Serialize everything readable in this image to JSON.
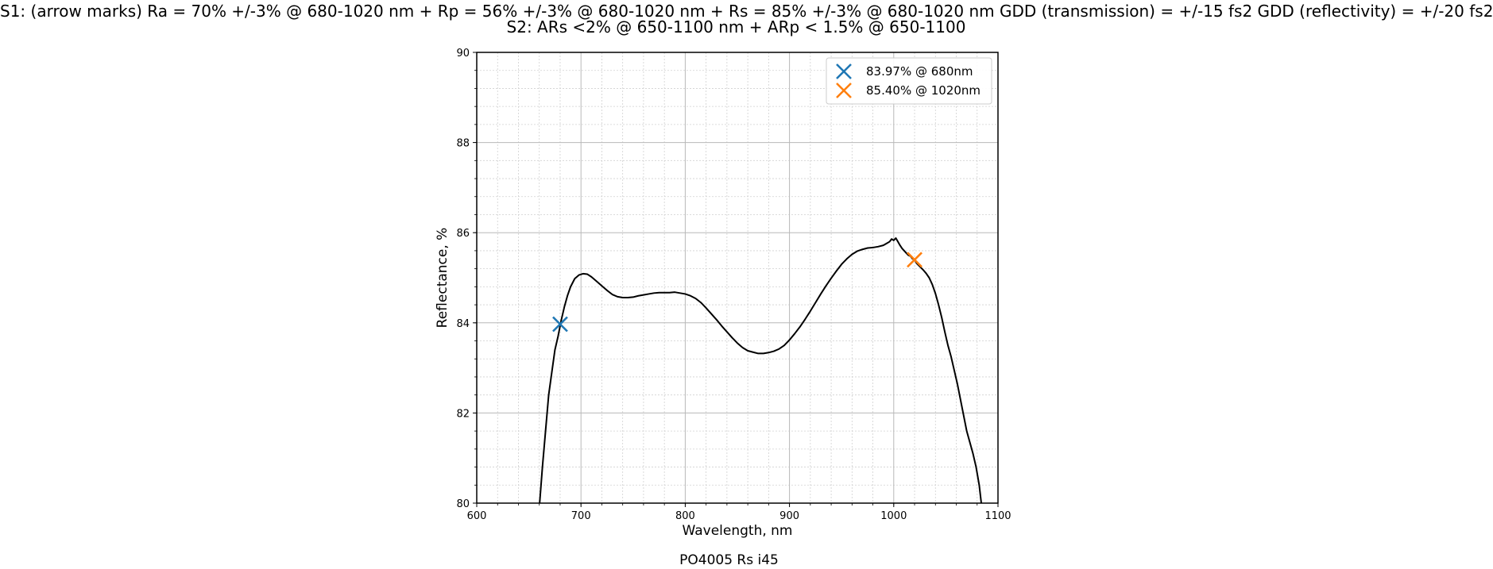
{
  "figure": {
    "title_line1": "S1: (arrow marks)  Ra = 70% +/-3% @ 680-1020 nm + Rp = 56% +/-3% @ 680-1020 nm + Rs = 85% +/-3% @ 680-1020 nm GDD (transmission) = +/-15 fs2 GDD (reflectivity) = +/-20 fs2",
    "title_line2": "S2: ARs <2% @ 650-1100 nm + ARp < 1.5% @ 650-1100",
    "caption": "PO4005 Rs i45"
  },
  "chart_data": {
    "type": "line",
    "xlabel": "Wavelength, nm",
    "ylabel": "Reflectance, %",
    "xlim": [
      600,
      1100
    ],
    "ylim": [
      80,
      90
    ],
    "x_ticks": [
      600,
      700,
      800,
      900,
      1000,
      1100
    ],
    "y_ticks": [
      80,
      82,
      84,
      86,
      88,
      90
    ],
    "x_tick_labels": [
      "600",
      "700",
      "800",
      "900",
      "1000",
      "1100"
    ],
    "y_tick_labels": [
      "80",
      "82",
      "84",
      "86",
      "88",
      "90"
    ],
    "grid": {
      "major": true,
      "minor": true,
      "minor_style": "dotted"
    },
    "legend_position": "top-right",
    "series": [
      {
        "color": "#000000",
        "x": [
          660,
          663,
          666,
          669,
          672,
          675,
          678,
          681,
          684,
          687,
          690,
          694,
          698,
          702,
          706,
          710,
          715,
          720,
          725,
          730,
          735,
          740,
          745,
          750,
          755,
          760,
          765,
          770,
          775,
          780,
          785,
          790,
          795,
          800,
          805,
          810,
          815,
          820,
          825,
          830,
          835,
          840,
          845,
          850,
          855,
          860,
          865,
          870,
          875,
          880,
          885,
          890,
          895,
          900,
          905,
          910,
          915,
          920,
          925,
          930,
          935,
          940,
          945,
          950,
          955,
          960,
          965,
          970,
          975,
          980,
          985,
          990,
          993,
          996,
          998,
          1000,
          1002,
          1004,
          1006,
          1008,
          1010,
          1012,
          1014,
          1016,
          1018,
          1020,
          1022,
          1025,
          1028,
          1031,
          1034,
          1037,
          1040,
          1043,
          1046,
          1049,
          1052,
          1055,
          1058,
          1061,
          1064,
          1067,
          1070,
          1073,
          1076,
          1079,
          1082,
          1084
        ],
        "y": [
          79.9,
          80.8,
          81.6,
          82.4,
          82.9,
          83.4,
          83.7,
          84.05,
          84.35,
          84.6,
          84.8,
          84.98,
          85.06,
          85.09,
          85.08,
          85.02,
          84.92,
          84.82,
          84.72,
          84.63,
          84.58,
          84.56,
          84.56,
          84.57,
          84.6,
          84.62,
          84.64,
          84.66,
          84.67,
          84.67,
          84.67,
          84.68,
          84.66,
          84.64,
          84.6,
          84.54,
          84.45,
          84.33,
          84.2,
          84.07,
          83.93,
          83.8,
          83.67,
          83.55,
          83.45,
          83.38,
          83.35,
          83.32,
          83.32,
          83.34,
          83.37,
          83.42,
          83.5,
          83.62,
          83.76,
          83.91,
          84.08,
          84.26,
          84.45,
          84.64,
          84.82,
          84.99,
          85.15,
          85.3,
          85.42,
          85.52,
          85.59,
          85.63,
          85.66,
          85.67,
          85.69,
          85.72,
          85.76,
          85.8,
          85.86,
          85.83,
          85.88,
          85.8,
          85.72,
          85.65,
          85.6,
          85.55,
          85.5,
          85.48,
          85.42,
          85.4,
          85.32,
          85.25,
          85.18,
          85.1,
          85.0,
          84.85,
          84.65,
          84.4,
          84.12,
          83.8,
          83.5,
          83.25,
          82.95,
          82.65,
          82.3,
          81.95,
          81.6,
          81.35,
          81.1,
          80.8,
          80.4,
          80.0
        ]
      }
    ],
    "markers": [
      {
        "x": 680,
        "y": 83.97,
        "label": "83.97% @ 680nm",
        "color": "#1f77b4",
        "shape": "x"
      },
      {
        "x": 1020,
        "y": 85.4,
        "label": "85.40% @ 1020nm",
        "color": "#ff7f0e",
        "shape": "x"
      }
    ]
  }
}
